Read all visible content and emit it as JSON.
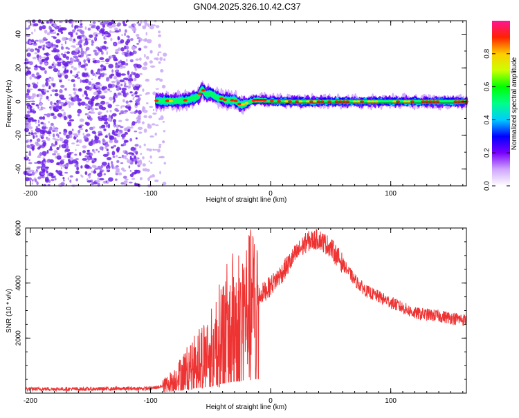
{
  "figure": {
    "title": "GN04.2025.326.10.42.C37"
  },
  "colors": {
    "snr_line": "#ee3333",
    "frame": "#000000",
    "speckle_dark": "#6a1ee6",
    "speckle_light": "#c9a8f5"
  },
  "chart_data": [
    {
      "type": "heatmap",
      "title": "GN04.2025.326.10.42.C37",
      "xlabel": "Height of straight line (km)",
      "ylabel": "Frequency (Hz)",
      "xlim": [
        -204,
        163
      ],
      "ylim": [
        -50,
        48
      ],
      "xticks": [
        -200,
        -100,
        0,
        100
      ],
      "xtick_labels": [
        "-200",
        "-100",
        "0",
        "100"
      ],
      "yticks": [
        -40,
        -20,
        0,
        20,
        40
      ],
      "ytick_labels": [
        "-40",
        "-20",
        "0",
        "20",
        "40"
      ],
      "noise_region_x": [
        -204,
        -88
      ],
      "signal_region_x": [
        -95,
        163
      ],
      "ridge": [
        {
          "x": -95,
          "y": 0.5
        },
        {
          "x": -80,
          "y": 0.3
        },
        {
          "x": -70,
          "y": 0.8
        },
        {
          "x": -60,
          "y": 3
        },
        {
          "x": -57,
          "y": 8
        },
        {
          "x": -54,
          "y": 4
        },
        {
          "x": -50,
          "y": 5
        },
        {
          "x": -45,
          "y": 2.5
        },
        {
          "x": -40,
          "y": 1.5
        },
        {
          "x": -35,
          "y": 0.5
        },
        {
          "x": -30,
          "y": 1
        },
        {
          "x": -25,
          "y": -2
        },
        {
          "x": -20,
          "y": -1
        },
        {
          "x": -15,
          "y": 0.5
        },
        {
          "x": -10,
          "y": 1
        },
        {
          "x": 0,
          "y": 0.3
        },
        {
          "x": 20,
          "y": 0
        },
        {
          "x": 60,
          "y": 0
        },
        {
          "x": 100,
          "y": 0
        },
        {
          "x": 163,
          "y": 0
        }
      ],
      "colorbar": {
        "label": "Normalized spectral amplitude",
        "range": [
          0,
          1
        ],
        "ticks": [
          0.0,
          0.2,
          0.4,
          0.6,
          0.8
        ],
        "tick_labels": [
          "0.0",
          "0.2",
          "0.4",
          "0.6",
          "0.8"
        ],
        "stops": [
          {
            "v": 0.0,
            "c": "#ffffff"
          },
          {
            "v": 0.1,
            "c": "#cfa6ff"
          },
          {
            "v": 0.2,
            "c": "#7a00ff"
          },
          {
            "v": 0.3,
            "c": "#0000ff"
          },
          {
            "v": 0.4,
            "c": "#00ccff"
          },
          {
            "v": 0.5,
            "c": "#00ff88"
          },
          {
            "v": 0.6,
            "c": "#00ff00"
          },
          {
            "v": 0.7,
            "c": "#ccff00"
          },
          {
            "v": 0.8,
            "c": "#ffcc00"
          },
          {
            "v": 0.9,
            "c": "#ff2200"
          },
          {
            "v": 1.0,
            "c": "#ff1493"
          }
        ]
      }
    },
    {
      "type": "line",
      "xlabel": "Height of straight line (km)",
      "ylabel": "SNR (10 * v/v)",
      "xlim": [
        -204,
        163
      ],
      "ylim": [
        0,
        6000
      ],
      "xticks": [
        -200,
        -100,
        0,
        100
      ],
      "xtick_labels": [
        "-200",
        "-100",
        "0",
        "100"
      ],
      "yticks": [
        2000,
        4000,
        6000
      ],
      "ytick_labels": [
        "2000",
        "4000",
        "6000"
      ],
      "envelope": [
        {
          "x": -204,
          "y": 150
        },
        {
          "x": -150,
          "y": 150
        },
        {
          "x": -100,
          "y": 170
        },
        {
          "x": -90,
          "y": 250
        },
        {
          "x": -80,
          "y": 500
        },
        {
          "x": -70,
          "y": 900
        },
        {
          "x": -60,
          "y": 1300
        },
        {
          "x": -50,
          "y": 1600
        },
        {
          "x": -40,
          "y": 2300
        },
        {
          "x": -30,
          "y": 2800
        },
        {
          "x": -20,
          "y": 3000
        },
        {
          "x": -10,
          "y": 3500
        },
        {
          "x": 0,
          "y": 3900
        },
        {
          "x": 10,
          "y": 4400
        },
        {
          "x": 20,
          "y": 5000
        },
        {
          "x": 30,
          "y": 5500
        },
        {
          "x": 40,
          "y": 5600
        },
        {
          "x": 50,
          "y": 5300
        },
        {
          "x": 60,
          "y": 4700
        },
        {
          "x": 70,
          "y": 4100
        },
        {
          "x": 80,
          "y": 3700
        },
        {
          "x": 90,
          "y": 3500
        },
        {
          "x": 100,
          "y": 3300
        },
        {
          "x": 110,
          "y": 3100
        },
        {
          "x": 120,
          "y": 2900
        },
        {
          "x": 140,
          "y": 2800
        },
        {
          "x": 163,
          "y": 2650
        }
      ]
    }
  ]
}
